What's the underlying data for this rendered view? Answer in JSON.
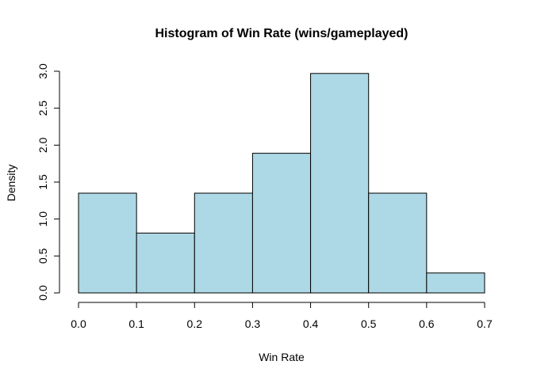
{
  "chart_data": {
    "type": "bar",
    "title": "Histogram of Win Rate (wins/gameplayed)",
    "xlabel": "Win Rate",
    "ylabel": "Density",
    "bins": [
      {
        "start": 0.0,
        "end": 0.1,
        "density": 1.35
      },
      {
        "start": 0.1,
        "end": 0.2,
        "density": 0.81
      },
      {
        "start": 0.2,
        "end": 0.3,
        "density": 1.35
      },
      {
        "start": 0.3,
        "end": 0.4,
        "density": 1.89
      },
      {
        "start": 0.4,
        "end": 0.5,
        "density": 2.97
      },
      {
        "start": 0.5,
        "end": 0.6,
        "density": 1.35
      },
      {
        "start": 0.6,
        "end": 0.7,
        "density": 0.27
      }
    ],
    "xlim": [
      0,
      0.7
    ],
    "ylim": [
      0,
      3.0
    ],
    "x_ticks": [
      "0.0",
      "0.1",
      "0.2",
      "0.3",
      "0.4",
      "0.5",
      "0.6",
      "0.7"
    ],
    "x_tick_values": [
      0.0,
      0.1,
      0.2,
      0.3,
      0.4,
      0.5,
      0.6,
      0.7
    ],
    "y_ticks": [
      "0.0",
      "0.5",
      "1.0",
      "1.5",
      "2.0",
      "2.5",
      "3.0"
    ],
    "y_tick_values": [
      0.0,
      0.5,
      1.0,
      1.5,
      2.0,
      2.5,
      3.0
    ],
    "bar_color": "#add8e6",
    "grid": false,
    "legend": "none"
  }
}
